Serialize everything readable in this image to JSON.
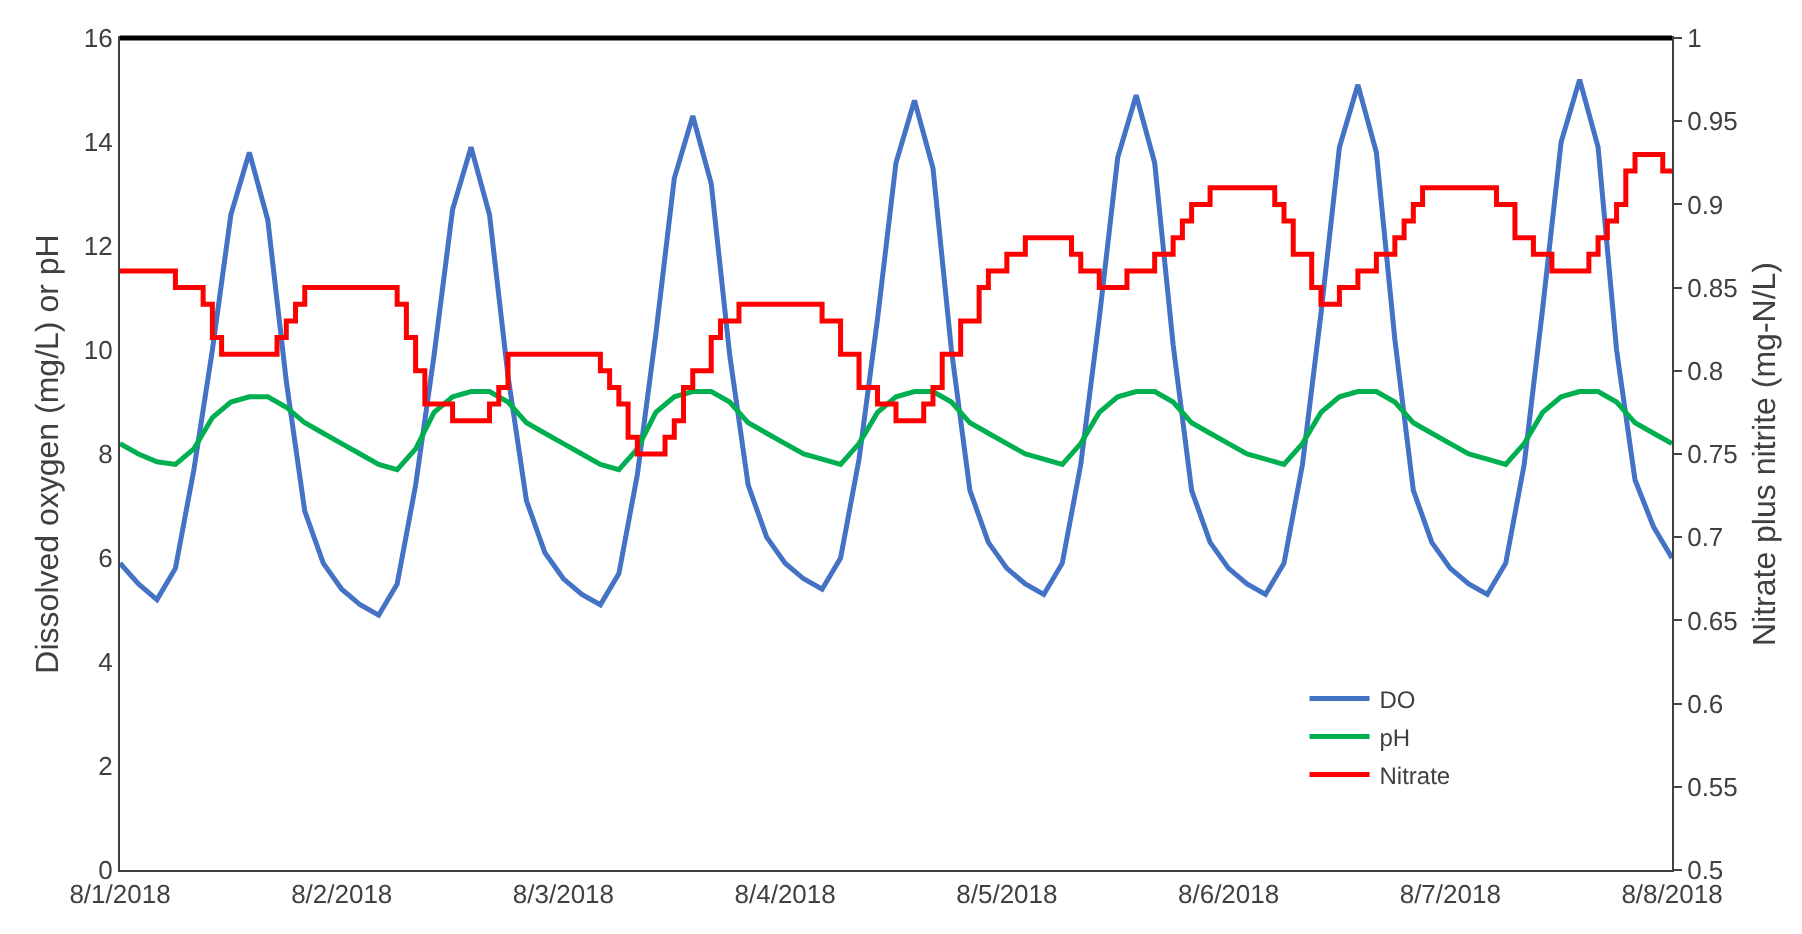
{
  "chart_data": {
    "type": "line",
    "ylabel": "Dissolved oxygen (mg/L) or pH",
    "y2label": "Nitrate plus nitrite (mg-N/L)",
    "x": [
      "2018-08-01T00:00",
      "2018-08-01T02:00",
      "2018-08-01T04:00",
      "2018-08-01T06:00",
      "2018-08-01T08:00",
      "2018-08-01T10:00",
      "2018-08-01T12:00",
      "2018-08-01T14:00",
      "2018-08-01T16:00",
      "2018-08-01T18:00",
      "2018-08-01T20:00",
      "2018-08-01T22:00",
      "2018-08-02T00:00",
      "2018-08-02T02:00",
      "2018-08-02T04:00",
      "2018-08-02T06:00",
      "2018-08-02T08:00",
      "2018-08-02T10:00",
      "2018-08-02T12:00",
      "2018-08-02T14:00",
      "2018-08-02T16:00",
      "2018-08-02T18:00",
      "2018-08-02T20:00",
      "2018-08-02T22:00",
      "2018-08-03T00:00",
      "2018-08-03T02:00",
      "2018-08-03T04:00",
      "2018-08-03T06:00",
      "2018-08-03T08:00",
      "2018-08-03T10:00",
      "2018-08-03T12:00",
      "2018-08-03T14:00",
      "2018-08-03T16:00",
      "2018-08-03T18:00",
      "2018-08-03T20:00",
      "2018-08-03T22:00",
      "2018-08-04T00:00",
      "2018-08-04T02:00",
      "2018-08-04T04:00",
      "2018-08-04T06:00",
      "2018-08-04T08:00",
      "2018-08-04T10:00",
      "2018-08-04T12:00",
      "2018-08-04T14:00",
      "2018-08-04T16:00",
      "2018-08-04T18:00",
      "2018-08-04T20:00",
      "2018-08-04T22:00",
      "2018-08-05T00:00",
      "2018-08-05T02:00",
      "2018-08-05T04:00",
      "2018-08-05T06:00",
      "2018-08-05T08:00",
      "2018-08-05T10:00",
      "2018-08-05T12:00",
      "2018-08-05T14:00",
      "2018-08-05T16:00",
      "2018-08-05T18:00",
      "2018-08-05T20:00",
      "2018-08-05T22:00",
      "2018-08-06T00:00",
      "2018-08-06T02:00",
      "2018-08-06T04:00",
      "2018-08-06T06:00",
      "2018-08-06T08:00",
      "2018-08-06T10:00",
      "2018-08-06T12:00",
      "2018-08-06T14:00",
      "2018-08-06T16:00",
      "2018-08-06T18:00",
      "2018-08-06T20:00",
      "2018-08-06T22:00",
      "2018-08-07T00:00",
      "2018-08-07T02:00",
      "2018-08-07T04:00",
      "2018-08-07T06:00",
      "2018-08-07T08:00",
      "2018-08-07T10:00",
      "2018-08-07T12:00",
      "2018-08-07T14:00",
      "2018-08-07T16:00",
      "2018-08-07T18:00",
      "2018-08-07T20:00",
      "2018-08-07T22:00",
      "2018-08-08T00:00"
    ],
    "series": [
      {
        "name": "DO",
        "color": "#4472c4",
        "values": [
          5.9,
          5.5,
          5.2,
          5.8,
          7.7,
          10.0,
          12.6,
          13.8,
          12.5,
          9.4,
          6.9,
          5.9,
          5.4,
          5.1,
          4.9,
          5.5,
          7.4,
          9.9,
          12.7,
          13.9,
          12.6,
          9.5,
          7.1,
          6.1,
          5.6,
          5.3,
          5.1,
          5.7,
          7.6,
          10.3,
          13.3,
          14.5,
          13.2,
          9.9,
          7.4,
          6.4,
          5.9,
          5.6,
          5.4,
          6.0,
          7.9,
          10.6,
          13.6,
          14.8,
          13.5,
          10.0,
          7.3,
          6.3,
          5.8,
          5.5,
          5.3,
          5.9,
          7.8,
          10.6,
          13.7,
          14.9,
          13.6,
          10.1,
          7.3,
          6.3,
          5.8,
          5.5,
          5.3,
          5.9,
          7.8,
          10.7,
          13.9,
          15.1,
          13.8,
          10.2,
          7.3,
          6.3,
          5.8,
          5.5,
          5.3,
          5.9,
          7.8,
          10.8,
          14.0,
          15.2,
          13.9,
          10.0,
          7.5,
          6.6,
          6.0
        ]
      },
      {
        "name": "pH",
        "color": "#00b050",
        "values": [
          8.2,
          8.0,
          7.85,
          7.8,
          8.1,
          8.7,
          9.0,
          9.1,
          9.1,
          8.9,
          8.6,
          8.4,
          8.2,
          8.0,
          7.8,
          7.7,
          8.1,
          8.8,
          9.1,
          9.2,
          9.2,
          9.0,
          8.6,
          8.4,
          8.2,
          8.0,
          7.8,
          7.7,
          8.1,
          8.8,
          9.1,
          9.2,
          9.2,
          9.0,
          8.6,
          8.4,
          8.2,
          8.0,
          7.9,
          7.8,
          8.2,
          8.8,
          9.1,
          9.2,
          9.2,
          9.0,
          8.6,
          8.4,
          8.2,
          8.0,
          7.9,
          7.8,
          8.2,
          8.8,
          9.1,
          9.2,
          9.2,
          9.0,
          8.6,
          8.4,
          8.2,
          8.0,
          7.9,
          7.8,
          8.2,
          8.8,
          9.1,
          9.2,
          9.2,
          9.0,
          8.6,
          8.4,
          8.2,
          8.0,
          7.9,
          7.8,
          8.2,
          8.8,
          9.1,
          9.2,
          9.2,
          9.0,
          8.6,
          8.4,
          8.2
        ]
      },
      {
        "name": "Nitrate",
        "color": "#ff0000",
        "type": "step",
        "axis": "y2",
        "x": [
          "2018-08-01T00:00",
          "2018-08-01T06:00",
          "2018-08-01T09:00",
          "2018-08-01T10:00",
          "2018-08-01T11:00",
          "2018-08-01T17:00",
          "2018-08-01T18:00",
          "2018-08-01T19:00",
          "2018-08-01T20:00",
          "2018-08-02T06:00",
          "2018-08-02T07:00",
          "2018-08-02T08:00",
          "2018-08-02T09:00",
          "2018-08-02T12:00",
          "2018-08-02T16:00",
          "2018-08-02T17:00",
          "2018-08-02T18:00",
          "2018-08-03T04:00",
          "2018-08-03T05:00",
          "2018-08-03T06:00",
          "2018-08-03T07:00",
          "2018-08-03T08:00",
          "2018-08-03T11:00",
          "2018-08-03T12:00",
          "2018-08-03T13:00",
          "2018-08-03T14:00",
          "2018-08-03T16:00",
          "2018-08-03T17:00",
          "2018-08-03T19:00",
          "2018-08-04T04:00",
          "2018-08-04T06:00",
          "2018-08-04T08:00",
          "2018-08-04T10:00",
          "2018-08-04T12:00",
          "2018-08-04T15:00",
          "2018-08-04T16:00",
          "2018-08-04T17:00",
          "2018-08-04T19:00",
          "2018-08-04T21:00",
          "2018-08-04T22:00",
          "2018-08-05T00:00",
          "2018-08-05T02:00",
          "2018-08-05T07:00",
          "2018-08-05T08:00",
          "2018-08-05T10:00",
          "2018-08-05T13:00",
          "2018-08-05T16:00",
          "2018-08-05T18:00",
          "2018-08-05T19:00",
          "2018-08-05T20:00",
          "2018-08-05T22:00",
          "2018-08-06T05:00",
          "2018-08-06T06:00",
          "2018-08-06T07:00",
          "2018-08-06T09:00",
          "2018-08-06T10:00",
          "2018-08-06T12:00",
          "2018-08-06T14:00",
          "2018-08-06T16:00",
          "2018-08-06T18:00",
          "2018-08-06T19:00",
          "2018-08-06T20:00",
          "2018-08-06T21:00",
          "2018-08-07T05:00",
          "2018-08-07T07:00",
          "2018-08-07T09:00",
          "2018-08-07T11:00",
          "2018-08-07T15:00",
          "2018-08-07T16:00",
          "2018-08-07T17:00",
          "2018-08-07T18:00",
          "2018-08-07T19:00",
          "2018-08-07T20:00",
          "2018-08-07T23:00",
          "2018-08-08T00:00"
        ],
        "values": [
          0.86,
          0.85,
          0.84,
          0.82,
          0.81,
          0.82,
          0.83,
          0.84,
          0.85,
          0.84,
          0.82,
          0.8,
          0.78,
          0.77,
          0.78,
          0.79,
          0.81,
          0.8,
          0.79,
          0.78,
          0.76,
          0.75,
          0.76,
          0.77,
          0.79,
          0.8,
          0.82,
          0.83,
          0.84,
          0.83,
          0.81,
          0.79,
          0.78,
          0.77,
          0.78,
          0.79,
          0.81,
          0.83,
          0.85,
          0.86,
          0.87,
          0.88,
          0.87,
          0.86,
          0.85,
          0.86,
          0.87,
          0.88,
          0.89,
          0.9,
          0.91,
          0.9,
          0.89,
          0.87,
          0.85,
          0.84,
          0.85,
          0.86,
          0.87,
          0.88,
          0.89,
          0.9,
          0.91,
          0.9,
          0.88,
          0.87,
          0.86,
          0.87,
          0.88,
          0.89,
          0.9,
          0.92,
          0.93,
          0.92,
          0.92
        ]
      }
    ],
    "xlim": [
      "2018-08-01",
      "2018-08-08"
    ],
    "xticks": [
      {
        "value": "2018-08-01",
        "label": "8/1/2018"
      },
      {
        "value": "2018-08-02",
        "label": "8/2/2018"
      },
      {
        "value": "2018-08-03",
        "label": "8/3/2018"
      },
      {
        "value": "2018-08-04",
        "label": "8/4/2018"
      },
      {
        "value": "2018-08-05",
        "label": "8/5/2018"
      },
      {
        "value": "2018-08-06",
        "label": "8/6/2018"
      },
      {
        "value": "2018-08-07",
        "label": "8/7/2018"
      },
      {
        "value": "2018-08-08",
        "label": "8/8/2018"
      }
    ],
    "ylim": [
      0,
      16
    ],
    "yticks": [
      0,
      2,
      4,
      6,
      8,
      10,
      12,
      14,
      16
    ],
    "y2lim": [
      0.5,
      1
    ],
    "y2ticks": [
      0.5,
      0.55,
      0.6,
      0.65,
      0.7,
      0.75,
      0.8,
      0.85,
      0.9,
      0.95,
      1
    ],
    "legend": "bottom right",
    "marker": "none",
    "line_style": "solid"
  }
}
